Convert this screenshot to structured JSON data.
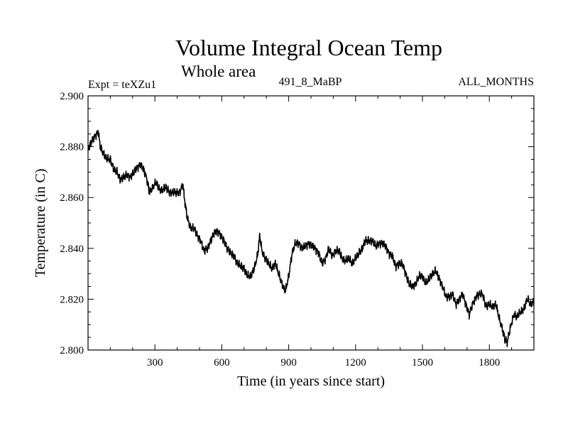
{
  "chart_data": {
    "type": "line",
    "title": "Volume Integral Ocean Temp",
    "subtitle": "Whole area",
    "header_left": "Expt = teXZu1",
    "header_center": "491_8_MaBP",
    "header_right": "ALL_MONTHS",
    "xlabel": "Time (in years since start)",
    "ylabel": "Temperature (in C)",
    "xlim": [
      0,
      2000
    ],
    "ylim": [
      2.8,
      2.9
    ],
    "x_ticks": [
      300,
      600,
      900,
      1200,
      1500,
      1800
    ],
    "y_ticks": [
      2.8,
      2.82,
      2.84,
      2.86,
      2.88,
      2.9
    ],
    "x_tick_labels": [
      "300",
      "600",
      "900",
      "1200",
      "1500",
      "1800"
    ],
    "y_tick_labels": [
      "2.800",
      "2.820",
      "2.840",
      "2.860",
      "2.880",
      "2.900"
    ],
    "grid": false,
    "line_color": "#000000",
    "series": [
      {
        "name": "Volume Integral Ocean Temp",
        "x": [
          0,
          15,
          30,
          45,
          55,
          70,
          85,
          100,
          115,
          130,
          145,
          160,
          175,
          190,
          205,
          220,
          235,
          250,
          265,
          275,
          290,
          305,
          320,
          335,
          350,
          365,
          380,
          395,
          410,
          425,
          435,
          445,
          460,
          475,
          490,
          505,
          520,
          535,
          550,
          565,
          580,
          595,
          610,
          625,
          640,
          655,
          670,
          685,
          700,
          715,
          730,
          745,
          760,
          770,
          780,
          795,
          810,
          825,
          840,
          855,
          870,
          885,
          900,
          915,
          930,
          945,
          960,
          975,
          990,
          1005,
          1020,
          1035,
          1050,
          1065,
          1080,
          1095,
          1110,
          1125,
          1140,
          1155,
          1170,
          1185,
          1200,
          1215,
          1230,
          1245,
          1260,
          1275,
          1290,
          1305,
          1320,
          1335,
          1350,
          1365,
          1380,
          1395,
          1410,
          1425,
          1440,
          1455,
          1470,
          1485,
          1500,
          1515,
          1530,
          1545,
          1560,
          1575,
          1590,
          1605,
          1620,
          1635,
          1650,
          1665,
          1680,
          1695,
          1710,
          1725,
          1740,
          1755,
          1770,
          1785,
          1800,
          1815,
          1830,
          1845,
          1860,
          1870,
          1880,
          1895,
          1910,
          1925,
          1940,
          1955,
          1970,
          1985,
          2000
        ],
        "values": [
          2.879,
          2.882,
          2.884,
          2.886,
          2.88,
          2.877,
          2.875,
          2.875,
          2.871,
          2.87,
          2.867,
          2.868,
          2.869,
          2.868,
          2.87,
          2.872,
          2.873,
          2.871,
          2.867,
          2.862,
          2.864,
          2.866,
          2.863,
          2.863,
          2.864,
          2.862,
          2.862,
          2.862,
          2.862,
          2.865,
          2.858,
          2.852,
          2.848,
          2.848,
          2.845,
          2.843,
          2.839,
          2.84,
          2.843,
          2.846,
          2.847,
          2.845,
          2.843,
          2.84,
          2.838,
          2.837,
          2.834,
          2.833,
          2.832,
          2.829,
          2.829,
          2.832,
          2.837,
          2.845,
          2.839,
          2.836,
          2.834,
          2.832,
          2.834,
          2.83,
          2.826,
          2.823,
          2.829,
          2.838,
          2.842,
          2.842,
          2.84,
          2.841,
          2.842,
          2.841,
          2.84,
          2.838,
          2.834,
          2.836,
          2.84,
          2.837,
          2.839,
          2.839,
          2.836,
          2.835,
          2.836,
          2.834,
          2.836,
          2.838,
          2.84,
          2.843,
          2.843,
          2.843,
          2.841,
          2.842,
          2.842,
          2.841,
          2.838,
          2.837,
          2.833,
          2.834,
          2.834,
          2.83,
          2.826,
          2.825,
          2.826,
          2.829,
          2.829,
          2.826,
          2.828,
          2.83,
          2.831,
          2.828,
          2.825,
          2.821,
          2.821,
          2.822,
          2.818,
          2.82,
          2.822,
          2.818,
          2.814,
          2.818,
          2.821,
          2.822,
          2.822,
          2.817,
          2.818,
          2.817,
          2.818,
          2.812,
          2.808,
          2.804,
          2.803,
          2.809,
          2.814,
          2.813,
          2.815,
          2.816,
          2.82,
          2.818,
          2.819
        ]
      }
    ]
  }
}
